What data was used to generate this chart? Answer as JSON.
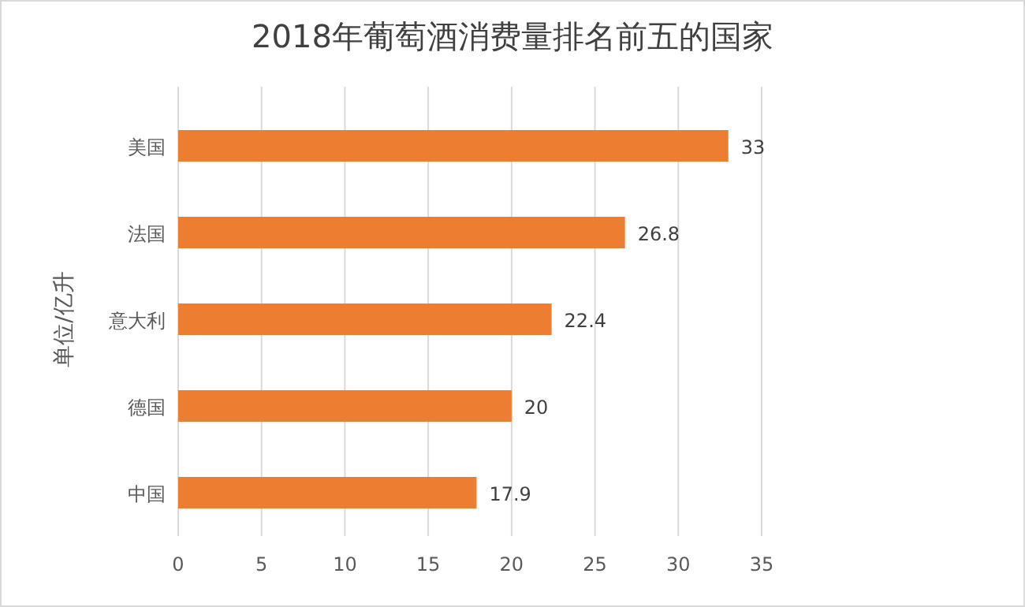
{
  "chart_data": {
    "type": "bar",
    "orientation": "horizontal",
    "title": "2018年葡萄酒消费量排名前五的国家",
    "ylabel": "单位/亿升",
    "categories": [
      "美国",
      "法国",
      "意大利",
      "德国",
      "中国"
    ],
    "values": [
      33,
      26.8,
      22.4,
      20,
      17.9
    ],
    "color": "#ed7d31",
    "xlim": [
      0,
      35
    ],
    "xticks": [
      0,
      5,
      10,
      15,
      20,
      25,
      30,
      35
    ],
    "grid": "x",
    "data_labels": true
  }
}
